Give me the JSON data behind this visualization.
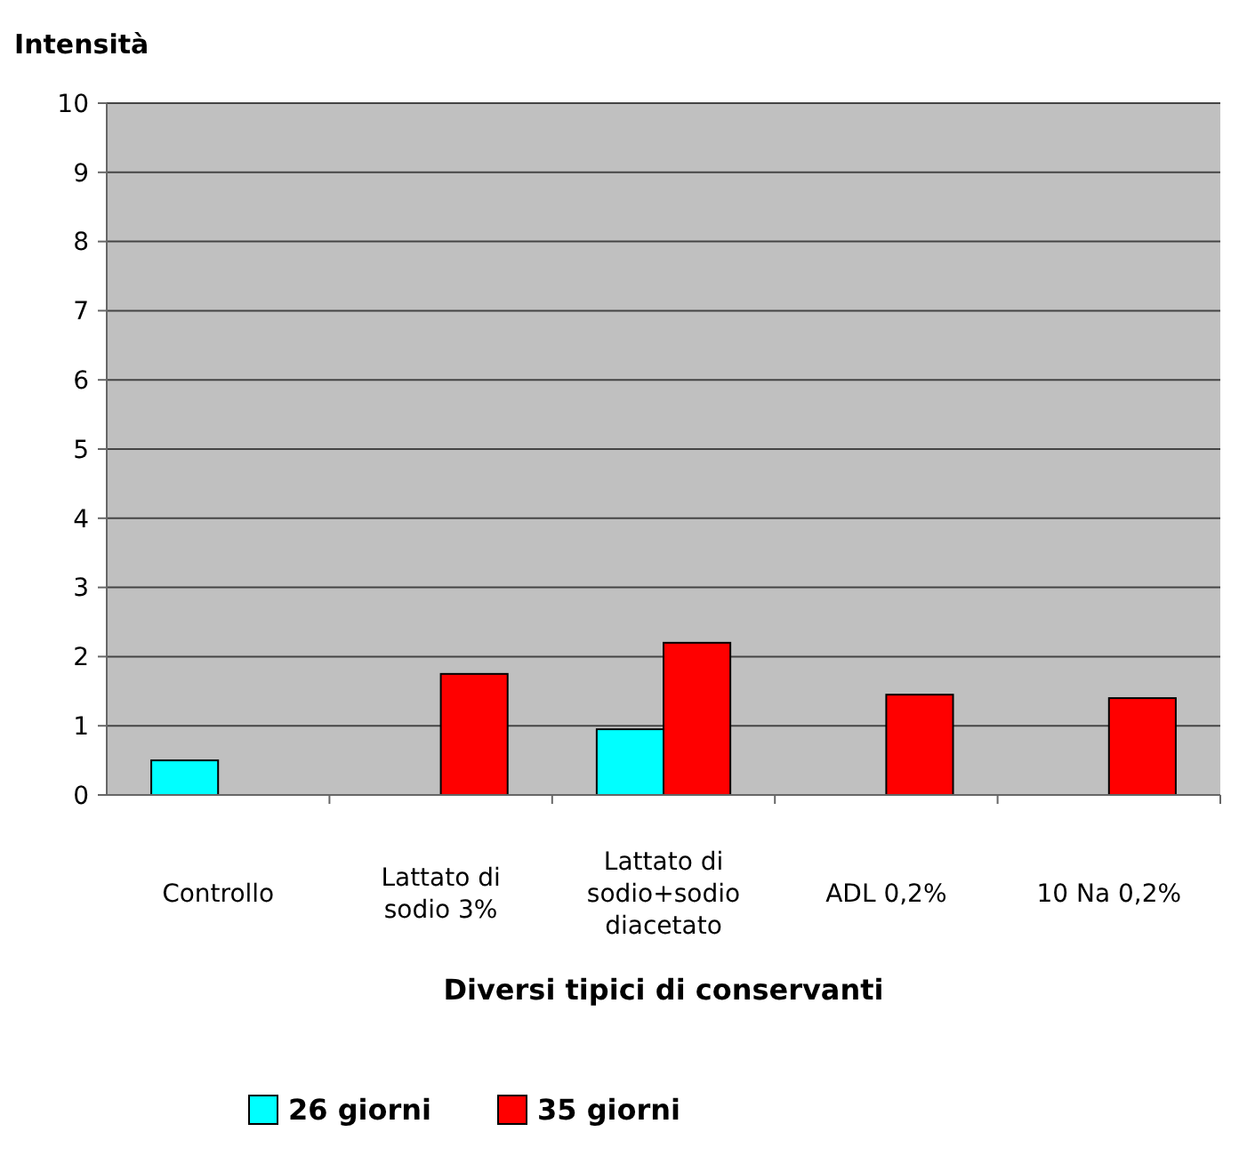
{
  "chart_data": {
    "type": "bar",
    "ylabel": "Intensità",
    "xlabel": "Diversi tipici di conservanti",
    "categories": [
      "Controllo",
      "Lattato di sodio 3%",
      "Lattato di sodio+sodio diacetato",
      "ADL 0,2%",
      "10 Na 0,2%"
    ],
    "series": [
      {
        "name": "26 giorni",
        "color": "#00ffff",
        "values": [
          0.5,
          null,
          0.95,
          null,
          null
        ]
      },
      {
        "name": "35 giorni",
        "color": "#ff0000",
        "values": [
          null,
          1.75,
          2.2,
          1.45,
          1.4
        ]
      }
    ],
    "ylim": [
      0,
      10
    ],
    "yticks": [
      0,
      1,
      2,
      3,
      4,
      5,
      6,
      7,
      8,
      9,
      10
    ],
    "grid": "y",
    "legend": "bottom"
  }
}
